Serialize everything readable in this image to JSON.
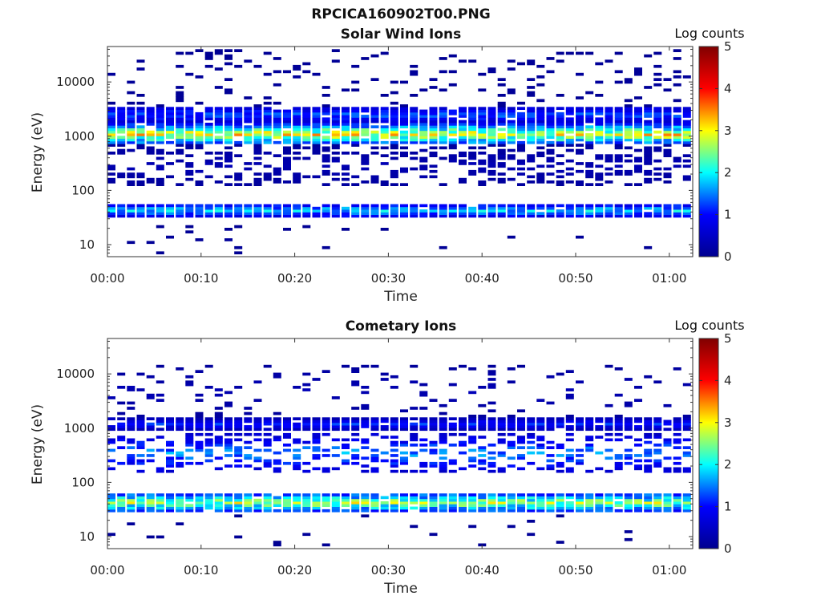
{
  "figure_title": "RPCICA160902T00.PNG",
  "chart_data": [
    {
      "type": "heatmap",
      "title": "Solar Wind Ions",
      "xlabel": "Time",
      "ylabel": "Energy (eV)",
      "x_ticks": [
        "00:00",
        "00:10",
        "00:20",
        "00:30",
        "00:40",
        "00:50",
        "01:00"
      ],
      "x_range_minutes": [
        0,
        62.5
      ],
      "y_scale": "log",
      "y_ticks": [
        "10",
        "100",
        "1000",
        "10000"
      ],
      "y_range": [
        6,
        45000
      ],
      "colorbar": {
        "label": "Log counts",
        "ticks": [
          "0",
          "1",
          "2",
          "3",
          "4",
          "5"
        ],
        "range": [
          0,
          5
        ],
        "colormap": "jet"
      },
      "bands": [
        {
          "emin": 32,
          "emax": 58,
          "peak": 1.8,
          "coverage": 0.97
        },
        {
          "emin": 700,
          "emax": 1700,
          "peak": 2.9,
          "coverage": 0.95
        },
        {
          "emin": 1700,
          "emax": 3600,
          "peak": 1.3,
          "coverage": 0.92
        },
        {
          "emin": 120,
          "emax": 700,
          "peak": 0.3,
          "coverage": 0.42
        },
        {
          "emin": 3600,
          "emax": 40000,
          "peak": 0.1,
          "coverage": 0.09
        },
        {
          "emin": 7,
          "emax": 25,
          "peak": 0.1,
          "coverage": 0.04
        }
      ]
    },
    {
      "type": "heatmap",
      "title": "Cometary Ions",
      "xlabel": "Time",
      "ylabel": "Energy (eV)",
      "x_ticks": [
        "00:00",
        "00:10",
        "00:20",
        "00:30",
        "00:40",
        "00:50",
        "01:00"
      ],
      "x_range_minutes": [
        0,
        62.5
      ],
      "y_scale": "log",
      "y_ticks": [
        "10",
        "100",
        "1000",
        "10000"
      ],
      "y_range": [
        6,
        45000
      ],
      "colorbar": {
        "label": "Log counts",
        "ticks": [
          "0",
          "1",
          "2",
          "3",
          "4",
          "5"
        ],
        "range": [
          0,
          5
        ],
        "colormap": "jet"
      },
      "bands": [
        {
          "emin": 28,
          "emax": 65,
          "peak": 2.6,
          "coverage": 0.97
        },
        {
          "emin": 950,
          "emax": 1500,
          "peak": 1.1,
          "coverage": 0.93
        },
        {
          "emin": 150,
          "emax": 800,
          "peak": 1.5,
          "coverage": 0.45
        },
        {
          "emin": 1500,
          "emax": 15000,
          "peak": 0.3,
          "coverage": 0.12
        },
        {
          "emin": 7,
          "emax": 25,
          "peak": 0.1,
          "coverage": 0.03
        }
      ]
    }
  ],
  "colors": {
    "jet": [
      "#00008f",
      "#0000ff",
      "#00ffff",
      "#ffff00",
      "#ff0000",
      "#800000"
    ]
  }
}
